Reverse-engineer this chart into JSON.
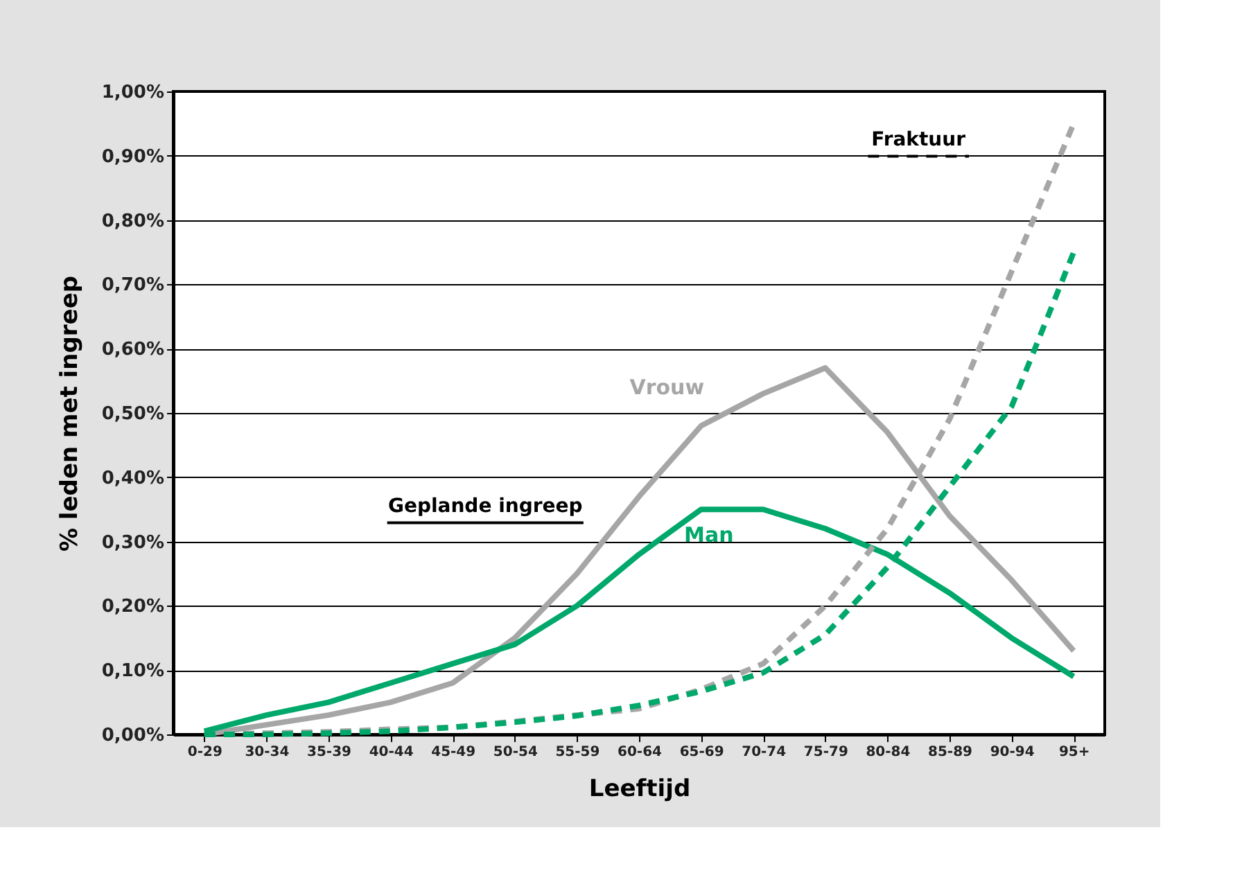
{
  "chart_data": {
    "type": "line",
    "xlabel": "Leeftijd",
    "ylabel": "% leden met ingreep",
    "categories": [
      "0-29",
      "30-34",
      "35-39",
      "40-44",
      "45-49",
      "50-54",
      "55-59",
      "60-64",
      "65-69",
      "70-74",
      "75-79",
      "80-84",
      "85-89",
      "90-94",
      "95+"
    ],
    "ylim": [
      0,
      1.0
    ],
    "yticks": [
      {
        "value": 0,
        "label": "0,00%"
      },
      {
        "value": 0.1,
        "label": "0,10%"
      },
      {
        "value": 0.2,
        "label": "0,20%"
      },
      {
        "value": 0.3,
        "label": "0,30%"
      },
      {
        "value": 0.4,
        "label": "0,40%"
      },
      {
        "value": 0.5,
        "label": "0,50%"
      },
      {
        "value": 0.6,
        "label": "0,60%"
      },
      {
        "value": 0.7,
        "label": "0,70%"
      },
      {
        "value": 0.8,
        "label": "0,80%"
      },
      {
        "value": 0.9,
        "label": "0,90%"
      },
      {
        "value": 1.0,
        "label": "1,00%"
      }
    ],
    "grid": "y",
    "annotations": [
      "Geplande ingreep",
      "Fraktuur"
    ],
    "series": [
      {
        "name": "Vrouw",
        "color": "#a6a6a6",
        "line_style": "solid",
        "values": [
          0.0,
          0.015,
          0.03,
          0.05,
          0.08,
          0.15,
          0.25,
          0.37,
          0.48,
          0.53,
          0.57,
          0.47,
          0.34,
          0.24,
          0.13
        ]
      },
      {
        "name": "Man",
        "color": "#00a86b",
        "line_style": "solid",
        "values": [
          0.005,
          0.03,
          0.05,
          0.08,
          0.11,
          0.14,
          0.2,
          0.28,
          0.35,
          0.35,
          0.32,
          0.28,
          0.22,
          0.15,
          0.09
        ]
      },
      {
        "color": "#a6a6a6",
        "line_style": "dashed",
        "values": [
          0.0,
          0.002,
          0.004,
          0.008,
          0.011,
          0.02,
          0.03,
          0.04,
          0.07,
          0.11,
          0.2,
          0.32,
          0.49,
          0.72,
          0.95
        ]
      },
      {
        "color": "#00a86b",
        "line_style": "dashed",
        "values": [
          0.0,
          0.0,
          0.002,
          0.005,
          0.011,
          0.019,
          0.029,
          0.045,
          0.067,
          0.096,
          0.155,
          0.26,
          0.385,
          0.51,
          0.75
        ]
      }
    ]
  }
}
